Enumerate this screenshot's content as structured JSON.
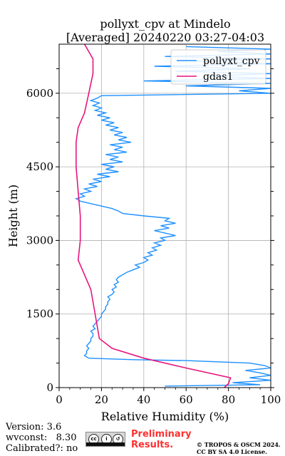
{
  "header": {
    "title_line1": "pollyxt_cpv at Mindelo",
    "title_line2": "[Averaged] 20240220 03:27-04:03"
  },
  "footer": {
    "version": "Version: 3.6",
    "wvconst": "wvconst:   8.30",
    "calibrated": "Calibrated?: no",
    "license_badge": "CC BY",
    "preliminary_line1": "Preliminary",
    "preliminary_line2": "Results.",
    "copyright_line1": "© TROPOS & OSCM 2024.",
    "copyright_line2": "CC BY SA 4.0 License."
  },
  "colors": {
    "pollyxt_cpv": "#1e90ff",
    "gdas1": "#e6157e",
    "grid": "#b0b0b0",
    "preliminary": "#ff3030"
  },
  "chart_data": {
    "type": "line",
    "title": "pollyxt_cpv at Mindelo [Averaged] 20240220 03:27-04:03",
    "xlabel": "Relative Humidity (%)",
    "ylabel": "Height (m)",
    "xlim": [
      0,
      100
    ],
    "ylim": [
      0,
      7000
    ],
    "xticks": [
      0,
      20,
      40,
      60,
      80,
      100
    ],
    "yticks": [
      0,
      1500,
      3000,
      4500,
      6000
    ],
    "grid": true,
    "legend_position": "top-right",
    "series": [
      {
        "name": "pollyxt_cpv",
        "points": [
          [
            50,
            30
          ],
          [
            95,
            60
          ],
          [
            82,
            100
          ],
          [
            100,
            150
          ],
          [
            90,
            200
          ],
          [
            100,
            250
          ],
          [
            95,
            300
          ],
          [
            88,
            350
          ],
          [
            100,
            400
          ],
          [
            97,
            450
          ],
          [
            90,
            500
          ],
          [
            60,
            550
          ],
          [
            35,
            570
          ],
          [
            14,
            600
          ],
          [
            12,
            650
          ],
          [
            13,
            700
          ],
          [
            13,
            750
          ],
          [
            14,
            800
          ],
          [
            13,
            850
          ],
          [
            14,
            900
          ],
          [
            15,
            950
          ],
          [
            15,
            1000
          ],
          [
            16,
            1050
          ],
          [
            16,
            1100
          ],
          [
            15,
            1150
          ],
          [
            17,
            1200
          ],
          [
            16,
            1250
          ],
          [
            17,
            1300
          ],
          [
            18,
            1350
          ],
          [
            19,
            1400
          ],
          [
            20,
            1450
          ],
          [
            20,
            1500
          ],
          [
            21,
            1550
          ],
          [
            22,
            1600
          ],
          [
            22,
            1650
          ],
          [
            23,
            1700
          ],
          [
            23,
            1750
          ],
          [
            24,
            1800
          ],
          [
            23,
            1850
          ],
          [
            25,
            1900
          ],
          [
            26,
            1950
          ],
          [
            25,
            2000
          ],
          [
            27,
            2050
          ],
          [
            26,
            2100
          ],
          [
            28,
            2150
          ],
          [
            27,
            2200
          ],
          [
            28,
            2250
          ],
          [
            30,
            2300
          ],
          [
            32,
            2350
          ],
          [
            35,
            2400
          ],
          [
            38,
            2450
          ],
          [
            36,
            2500
          ],
          [
            40,
            2550
          ],
          [
            42,
            2600
          ],
          [
            40,
            2650
          ],
          [
            44,
            2700
          ],
          [
            42,
            2750
          ],
          [
            46,
            2800
          ],
          [
            44,
            2850
          ],
          [
            48,
            2900
          ],
          [
            45,
            2950
          ],
          [
            50,
            3000
          ],
          [
            48,
            3050
          ],
          [
            55,
            3100
          ],
          [
            50,
            3150
          ],
          [
            45,
            3200
          ],
          [
            52,
            3250
          ],
          [
            48,
            3300
          ],
          [
            55,
            3350
          ],
          [
            50,
            3400
          ],
          [
            52,
            3450
          ],
          [
            40,
            3500
          ],
          [
            30,
            3550
          ],
          [
            28,
            3600
          ],
          [
            25,
            3650
          ],
          [
            20,
            3700
          ],
          [
            15,
            3750
          ],
          [
            10,
            3800
          ],
          [
            8,
            3850
          ],
          [
            12,
            3900
          ],
          [
            10,
            3950
          ],
          [
            15,
            4000
          ],
          [
            12,
            4050
          ],
          [
            18,
            4100
          ],
          [
            14,
            4150
          ],
          [
            20,
            4200
          ],
          [
            16,
            4250
          ],
          [
            24,
            4300
          ],
          [
            18,
            4350
          ],
          [
            28,
            4400
          ],
          [
            22,
            4450
          ],
          [
            26,
            4500
          ],
          [
            20,
            4550
          ],
          [
            30,
            4600
          ],
          [
            24,
            4650
          ],
          [
            28,
            4700
          ],
          [
            22,
            4750
          ],
          [
            32,
            4800
          ],
          [
            26,
            4850
          ],
          [
            30,
            4900
          ],
          [
            24,
            4950
          ],
          [
            34,
            5000
          ],
          [
            28,
            5050
          ],
          [
            32,
            5100
          ],
          [
            26,
            5150
          ],
          [
            30,
            5200
          ],
          [
            24,
            5250
          ],
          [
            28,
            5300
          ],
          [
            22,
            5350
          ],
          [
            26,
            5400
          ],
          [
            20,
            5450
          ],
          [
            24,
            5500
          ],
          [
            18,
            5550
          ],
          [
            22,
            5600
          ],
          [
            17,
            5650
          ],
          [
            20,
            5700
          ],
          [
            16,
            5750
          ],
          [
            19,
            5800
          ],
          [
            15,
            5850
          ],
          [
            18,
            5900
          ],
          [
            20,
            5950
          ],
          [
            100,
            6000
          ],
          [
            85,
            6050
          ],
          [
            100,
            6100
          ],
          [
            60,
            6150
          ],
          [
            100,
            6200
          ],
          [
            40,
            6250
          ],
          [
            100,
            6300
          ],
          [
            70,
            6350
          ],
          [
            100,
            6400
          ],
          [
            55,
            6450
          ],
          [
            90,
            6500
          ],
          [
            45,
            6550
          ],
          [
            100,
            6600
          ],
          [
            65,
            6650
          ],
          [
            100,
            6700
          ],
          [
            50,
            6750
          ],
          [
            100,
            6800
          ],
          [
            75,
            6850
          ],
          [
            100,
            6900
          ],
          [
            60,
            6950
          ]
        ]
      },
      {
        "name": "gdas1",
        "points": [
          [
            78,
            0
          ],
          [
            80,
            80
          ],
          [
            81,
            200
          ],
          [
            60,
            400
          ],
          [
            40,
            600
          ],
          [
            25,
            800
          ],
          [
            19,
            1000
          ],
          [
            17,
            1500
          ],
          [
            15,
            2000
          ],
          [
            9,
            2600
          ],
          [
            10,
            3000
          ],
          [
            10,
            3500
          ],
          [
            9,
            4000
          ],
          [
            8,
            4500
          ],
          [
            8,
            5000
          ],
          [
            9,
            5300
          ],
          [
            12,
            5600
          ],
          [
            14,
            6000
          ],
          [
            16,
            6400
          ],
          [
            16,
            6700
          ],
          [
            12,
            7000
          ]
        ]
      }
    ]
  }
}
